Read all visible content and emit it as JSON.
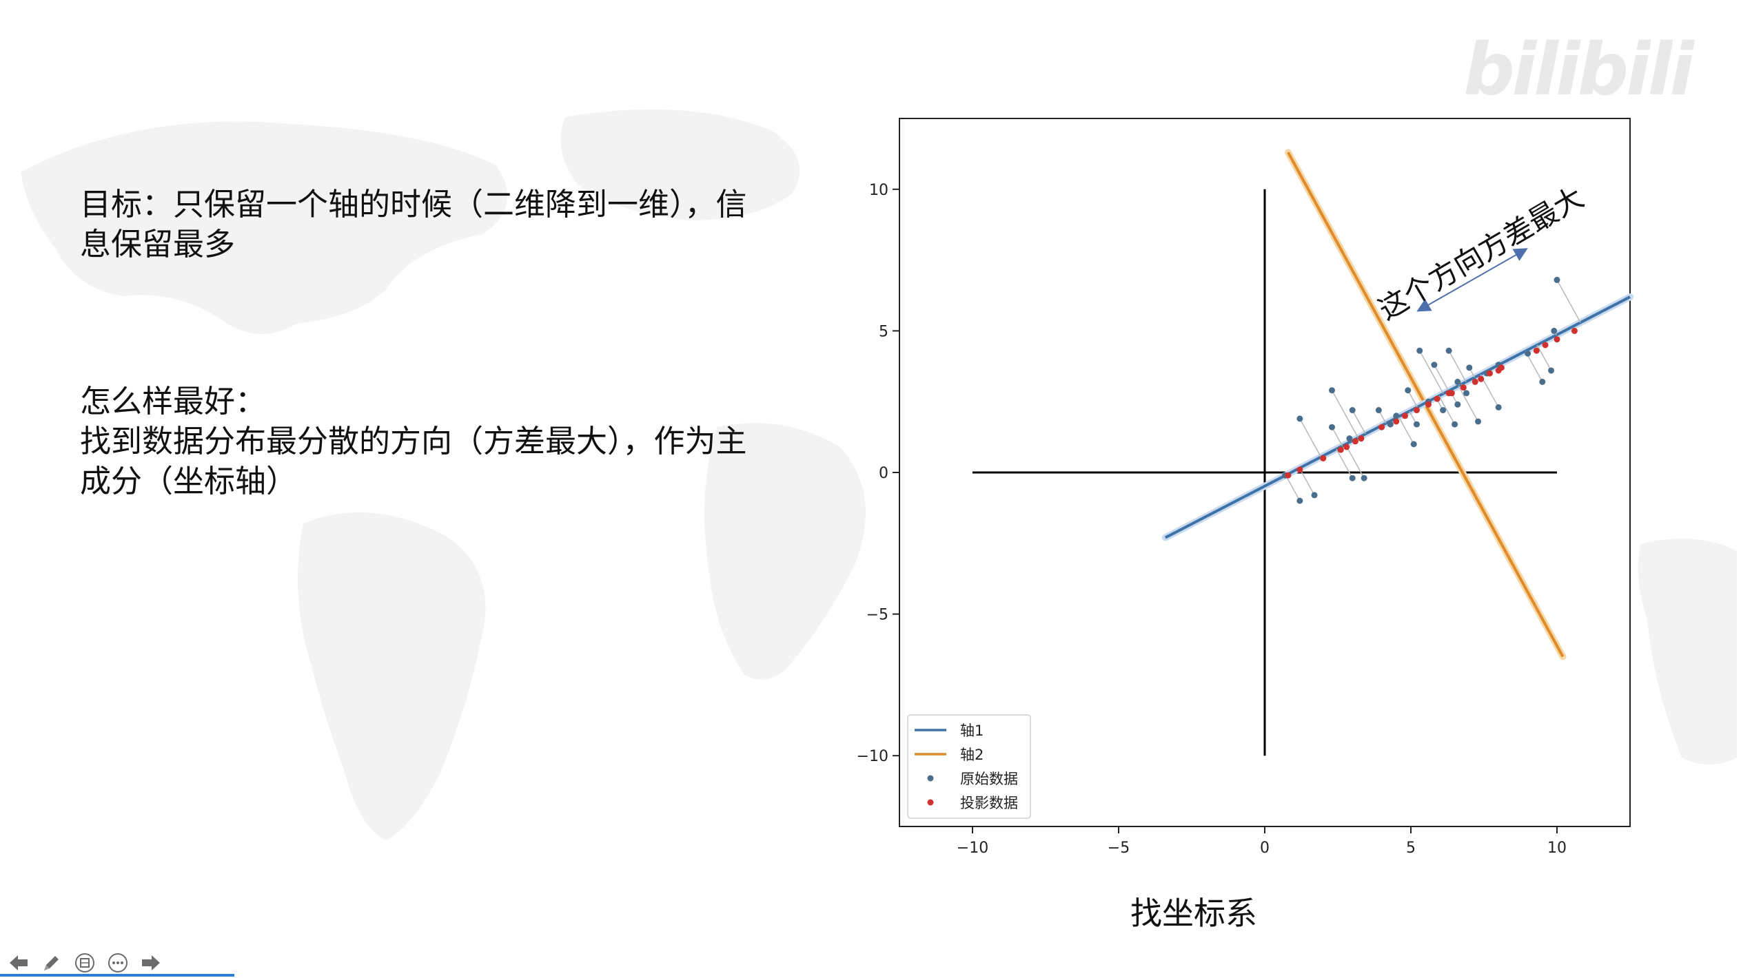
{
  "slide": {
    "goal_line1": "目标：只保留一个轴的时候（二维降到一维），信",
    "goal_line2": "息保留最多",
    "best_title": "怎么样最好：",
    "best_line1": "找到数据分布最分散的方向（方差最大），作为主",
    "best_line2": "成分（坐标轴）",
    "caption": "找坐标系",
    "watermark": "bilibili"
  },
  "colors": {
    "axis1": "#3f72a6",
    "axis2": "#e08a2a",
    "original": "#4a6d8c",
    "projection": "#d0312d",
    "annotation_arrow": "#4e6fae"
  },
  "chart_data": {
    "type": "scatter",
    "title": "",
    "xlabel": "",
    "ylabel": "",
    "xlim": [
      -12.5,
      12.5
    ],
    "ylim": [
      -12.5,
      12.5
    ],
    "xticks": [
      -10,
      -5,
      0,
      5,
      10
    ],
    "yticks": [
      -10,
      -5,
      0,
      5,
      10
    ],
    "xtick_labels": [
      "−10",
      "−5",
      "0",
      "5",
      "10"
    ],
    "ytick_labels": [
      "−10",
      "−5",
      "0",
      "5",
      "10"
    ],
    "grid": false,
    "legend_position": "lower-left",
    "annotation": "这个方向方差最大",
    "annotation_arrow": [
      [
        5.4,
        5.8
      ],
      [
        8.8,
        7.8
      ]
    ],
    "reference_axes": {
      "horizontal": [
        [
          -10,
          0
        ],
        [
          10,
          0
        ]
      ],
      "vertical": [
        [
          0,
          -10
        ],
        [
          0,
          10
        ]
      ]
    },
    "series": [
      {
        "name": "轴1",
        "kind": "line",
        "points": [
          [
            -3.4,
            -2.3
          ],
          [
            12.5,
            6.2
          ]
        ]
      },
      {
        "name": "轴2",
        "kind": "line",
        "points": [
          [
            0.8,
            11.3
          ],
          [
            10.2,
            -6.5
          ]
        ]
      },
      {
        "name": "原始数据",
        "kind": "scatter",
        "points": [
          [
            0.7,
            -0.1
          ],
          [
            1.2,
            -1.0
          ],
          [
            1.7,
            -0.8
          ],
          [
            1.2,
            1.9
          ],
          [
            2.3,
            2.9
          ],
          [
            2.3,
            1.6
          ],
          [
            2.9,
            1.2
          ],
          [
            3.0,
            2.2
          ],
          [
            3.0,
            -0.2
          ],
          [
            3.4,
            -0.2
          ],
          [
            3.9,
            2.2
          ],
          [
            4.3,
            1.7
          ],
          [
            4.9,
            2.9
          ],
          [
            5.1,
            1.0
          ],
          [
            5.2,
            1.7
          ],
          [
            5.3,
            4.3
          ],
          [
            5.8,
            3.8
          ],
          [
            6.3,
            4.3
          ],
          [
            6.1,
            2.2
          ],
          [
            6.5,
            1.7
          ],
          [
            6.6,
            2.4
          ],
          [
            6.6,
            3.2
          ],
          [
            7.0,
            3.7
          ],
          [
            7.3,
            1.8
          ],
          [
            8.0,
            2.3
          ],
          [
            7.6,
            3.5
          ],
          [
            8.0,
            3.8
          ],
          [
            9.0,
            4.2
          ],
          [
            9.5,
            3.2
          ],
          [
            9.8,
            3.6
          ],
          [
            9.9,
            5.0
          ],
          [
            10.0,
            6.8
          ],
          [
            6.9,
            2.8
          ],
          [
            5.6,
            2.5
          ],
          [
            4.5,
            2.0
          ]
        ]
      },
      {
        "name": "投影数据",
        "kind": "scatter",
        "points": [
          [
            0.8,
            -0.1
          ],
          [
            1.2,
            0.1
          ],
          [
            2.0,
            0.5
          ],
          [
            2.6,
            0.8
          ],
          [
            2.8,
            0.9
          ],
          [
            3.1,
            1.1
          ],
          [
            3.3,
            1.2
          ],
          [
            4.0,
            1.6
          ],
          [
            4.5,
            1.8
          ],
          [
            4.8,
            2.0
          ],
          [
            5.2,
            2.2
          ],
          [
            5.6,
            2.4
          ],
          [
            5.9,
            2.6
          ],
          [
            6.3,
            2.8
          ],
          [
            6.4,
            2.8
          ],
          [
            6.8,
            3.0
          ],
          [
            7.2,
            3.2
          ],
          [
            7.4,
            3.3
          ],
          [
            7.7,
            3.5
          ],
          [
            8.0,
            3.6
          ],
          [
            8.1,
            3.7
          ],
          [
            9.3,
            4.3
          ],
          [
            9.6,
            4.5
          ],
          [
            10.0,
            4.7
          ],
          [
            10.6,
            5.0
          ]
        ]
      }
    ]
  }
}
